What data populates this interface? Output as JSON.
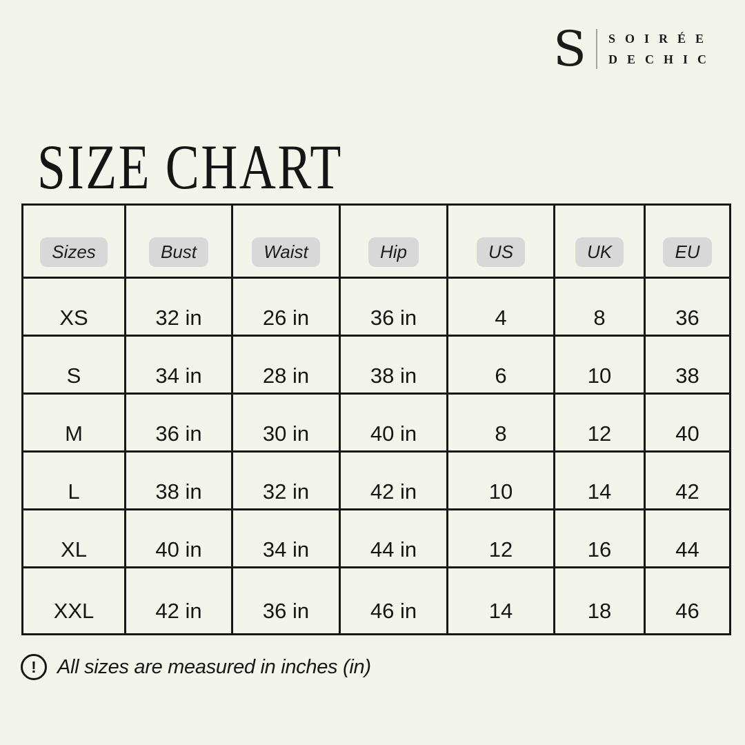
{
  "colors": {
    "background": "#f4f5ea",
    "ink": "#161616",
    "table_border": "#161616",
    "header_pill": "#d8d8d8",
    "logo_divider": "#a5a49b"
  },
  "logo": {
    "monogram": "S",
    "name_line1": "SOIRÉE",
    "name_line2": "DECHIC"
  },
  "title": "SIZE CHART",
  "chart_data": {
    "type": "table",
    "title": "SIZE CHART",
    "columns": [
      "Sizes",
      "Bust",
      "Waist",
      "Hip",
      "US",
      "UK",
      "EU"
    ],
    "rows": [
      [
        "XS",
        "32 in",
        "26 in",
        "36 in",
        "4",
        "8",
        "36"
      ],
      [
        "S",
        "34 in",
        "28 in",
        "38 in",
        "6",
        "10",
        "38"
      ],
      [
        "M",
        "36 in",
        "30 in",
        "40 in",
        "8",
        "12",
        "40"
      ],
      [
        "L",
        "38 in",
        "32 in",
        "42 in",
        "10",
        "14",
        "42"
      ],
      [
        "XL",
        "40 in",
        "34 in",
        "44 in",
        "12",
        "16",
        "44"
      ],
      [
        "XXL",
        "42 in",
        "36 in",
        "46 in",
        "14",
        "18",
        "46"
      ]
    ],
    "units_note": "All sizes are measured in inches (in)"
  },
  "footnote": {
    "icon_glyph": "!",
    "text": "All sizes are measured in inches (in)"
  }
}
